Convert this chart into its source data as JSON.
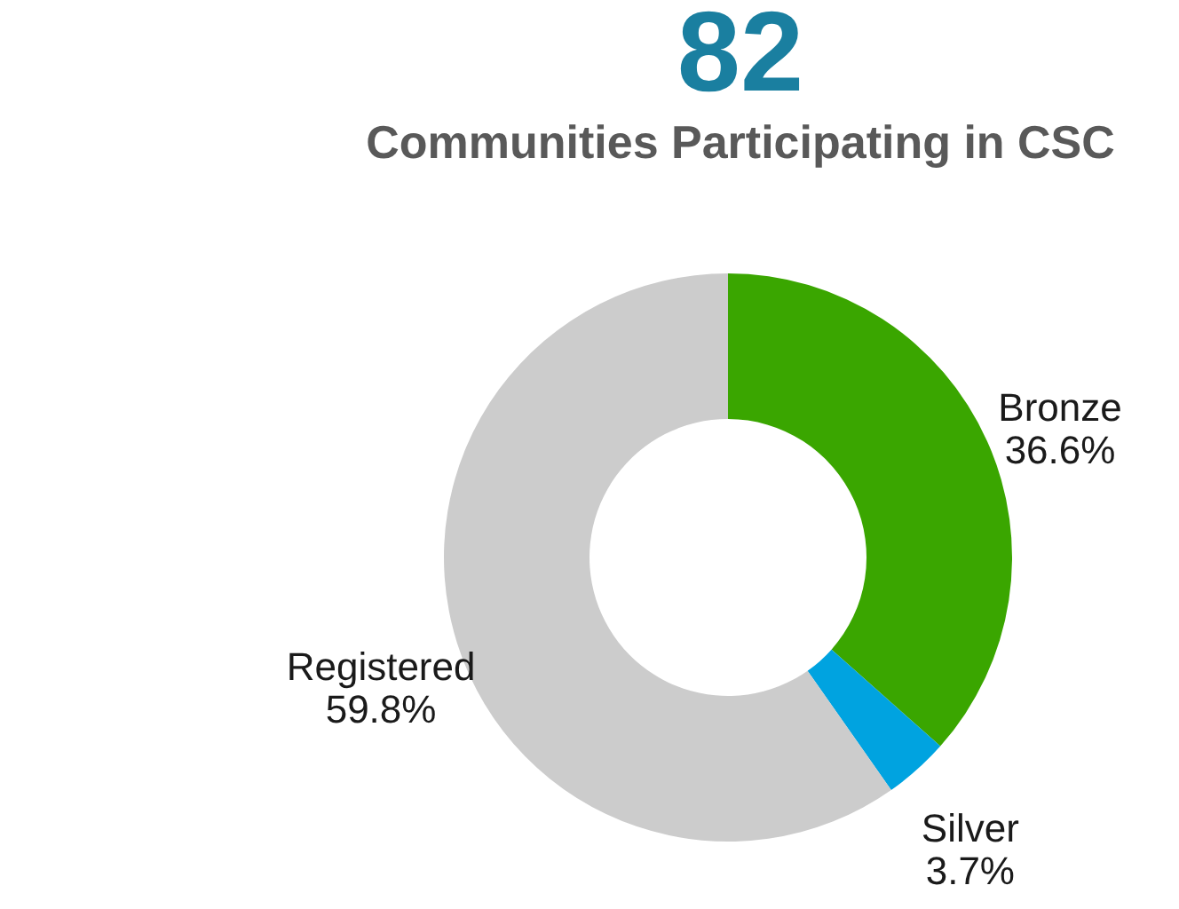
{
  "chart_data": {
    "type": "donut",
    "title": "82",
    "subtitle": "Communities Participating in CSC",
    "categories": [
      "Bronze",
      "Silver",
      "Registered"
    ],
    "values": [
      36.6,
      3.7,
      59.8
    ],
    "colors": [
      "#3aa600",
      "#00a3e0",
      "#cccccc"
    ],
    "value_labels": [
      "36.6%",
      "3.7%",
      "59.8%"
    ],
    "legend": false
  }
}
